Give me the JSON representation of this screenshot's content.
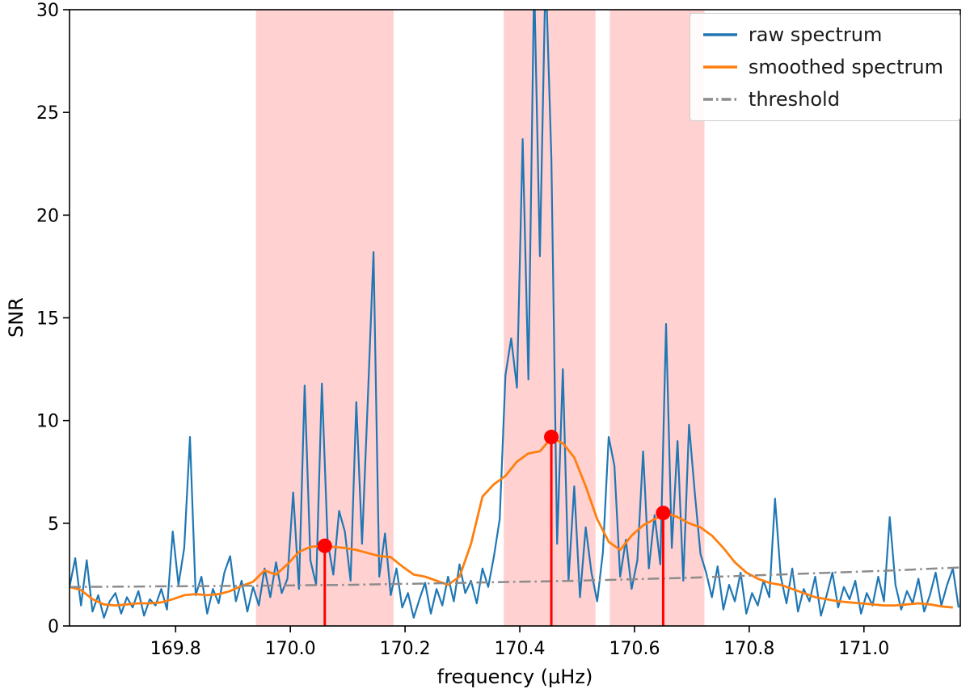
{
  "figure": {
    "background": "#ffffff"
  },
  "chart_data": {
    "type": "line",
    "title": "",
    "xlabel": "frequency (μHz)",
    "ylabel": "SNR",
    "xlim": [
      169.615,
      171.168
    ],
    "ylim": [
      0,
      30
    ],
    "grid": false,
    "legend_position": "upper right",
    "x_ticks": [
      169.8,
      170.0,
      170.2,
      170.4,
      170.6,
      170.8,
      171.0
    ],
    "x_tick_labels": [
      "169.8",
      "170.0",
      "170.2",
      "170.4",
      "170.6",
      "170.8",
      "171.0"
    ],
    "y_ticks": [
      0,
      5,
      10,
      15,
      20,
      25,
      30
    ],
    "y_tick_labels": [
      "0",
      "5",
      "10",
      "15",
      "20",
      "25",
      "30"
    ],
    "shaded_regions": {
      "color": "#ff0000",
      "opacity": 0.18,
      "spans": [
        [
          169.94,
          170.18
        ],
        [
          170.372,
          170.532
        ],
        [
          170.557,
          170.722
        ]
      ]
    },
    "peak_markers": {
      "color": "#ff0000",
      "points": [
        {
          "x": 170.06,
          "y": 3.9
        },
        {
          "x": 170.455,
          "y": 9.2
        },
        {
          "x": 170.65,
          "y": 5.5
        }
      ]
    },
    "series": [
      {
        "name": "raw spectrum",
        "color": "#1f77b4",
        "style": "solid",
        "width": 2.2,
        "x_start": 169.615,
        "x_step": 0.01,
        "values": [
          1.9,
          3.3,
          1.0,
          3.2,
          0.7,
          1.5,
          0.4,
          1.2,
          1.6,
          0.6,
          1.4,
          0.9,
          1.7,
          0.5,
          1.3,
          1.0,
          1.8,
          0.8,
          4.6,
          2.0,
          3.8,
          9.2,
          1.5,
          2.4,
          0.6,
          1.8,
          1.1,
          2.6,
          3.4,
          1.2,
          2.2,
          0.7,
          1.9,
          1.0,
          2.8,
          1.4,
          3.1,
          1.6,
          2.3,
          6.5,
          1.8,
          11.7,
          3.2,
          2.0,
          11.8,
          4.1,
          2.5,
          5.6,
          4.6,
          2.2,
          10.9,
          4.0,
          11.0,
          18.2,
          2.4,
          4.5,
          1.5,
          2.8,
          0.9,
          1.6,
          0.4,
          1.3,
          2.1,
          0.6,
          1.8,
          1.0,
          2.4,
          1.2,
          3.0,
          1.6,
          2.2,
          1.1,
          2.8,
          1.9,
          3.4,
          5.2,
          12.2,
          14.0,
          11.6,
          23.7,
          12.0,
          31.5,
          18.0,
          32.0,
          22.8,
          4.0,
          12.5,
          2.2,
          6.8,
          1.4,
          4.8,
          2.6,
          1.2,
          3.6,
          9.2,
          7.8,
          2.4,
          4.2,
          1.8,
          3.2,
          8.5,
          2.8,
          5.4,
          3.0,
          14.7,
          3.8,
          9.0,
          2.2,
          9.8,
          6.5,
          3.5,
          2.6,
          1.4,
          2.9,
          0.8,
          2.0,
          1.2,
          2.6,
          0.6,
          1.6,
          1.0,
          2.2,
          1.4,
          6.2,
          2.4,
          1.1,
          2.8,
          0.7,
          1.8,
          1.2,
          2.4,
          0.5,
          1.5,
          2.6,
          0.9,
          1.9,
          1.3,
          2.2,
          0.6,
          1.6,
          1.0,
          2.4,
          1.2,
          5.3,
          2.0,
          0.8,
          1.7,
          1.1,
          2.3,
          0.7,
          1.5,
          2.6,
          1.0,
          2.0,
          2.8,
          0.9
        ]
      },
      {
        "name": "smoothed spectrum",
        "color": "#ff7f0e",
        "style": "solid",
        "width": 2.8,
        "x_start": 169.615,
        "x_step": 0.02,
        "values": [
          1.9,
          1.75,
          1.3,
          1.05,
          1.0,
          1.05,
          1.1,
          1.1,
          1.15,
          1.3,
          1.5,
          1.55,
          1.5,
          1.55,
          1.7,
          1.95,
          2.15,
          2.7,
          2.5,
          3.0,
          3.6,
          3.85,
          3.9,
          3.85,
          3.8,
          3.7,
          3.55,
          3.4,
          3.35,
          2.9,
          2.5,
          2.4,
          2.2,
          2.0,
          2.4,
          4.0,
          6.3,
          6.9,
          7.3,
          8.0,
          8.4,
          8.5,
          9.15,
          8.9,
          8.2,
          6.8,
          5.2,
          4.1,
          3.7,
          4.4,
          4.9,
          5.2,
          5.5,
          5.3,
          5.0,
          4.8,
          4.4,
          3.8,
          3.1,
          2.6,
          2.3,
          2.1,
          2.0,
          1.8,
          1.6,
          1.4,
          1.3,
          1.2,
          1.15,
          1.1,
          1.05,
          1.0,
          1.0,
          1.05,
          1.1,
          1.05,
          0.95,
          0.9
        ]
      },
      {
        "name": "threshold",
        "color": "#8c8c8c",
        "style": "dashdot",
        "width": 2.5,
        "points": [
          [
            169.615,
            1.9
          ],
          [
            169.9,
            1.95
          ],
          [
            170.1,
            2.0
          ],
          [
            170.3,
            2.1
          ],
          [
            170.5,
            2.2
          ],
          [
            170.7,
            2.35
          ],
          [
            170.9,
            2.55
          ],
          [
            171.05,
            2.7
          ],
          [
            171.168,
            2.85
          ]
        ]
      }
    ]
  },
  "legend": {
    "items": [
      {
        "label": "raw spectrum",
        "color": "#1f77b4",
        "dash": "solid"
      },
      {
        "label": "smoothed spectrum",
        "color": "#ff7f0e",
        "dash": "solid"
      },
      {
        "label": "threshold",
        "color": "#8c8c8c",
        "dash": "dashdot"
      }
    ]
  }
}
